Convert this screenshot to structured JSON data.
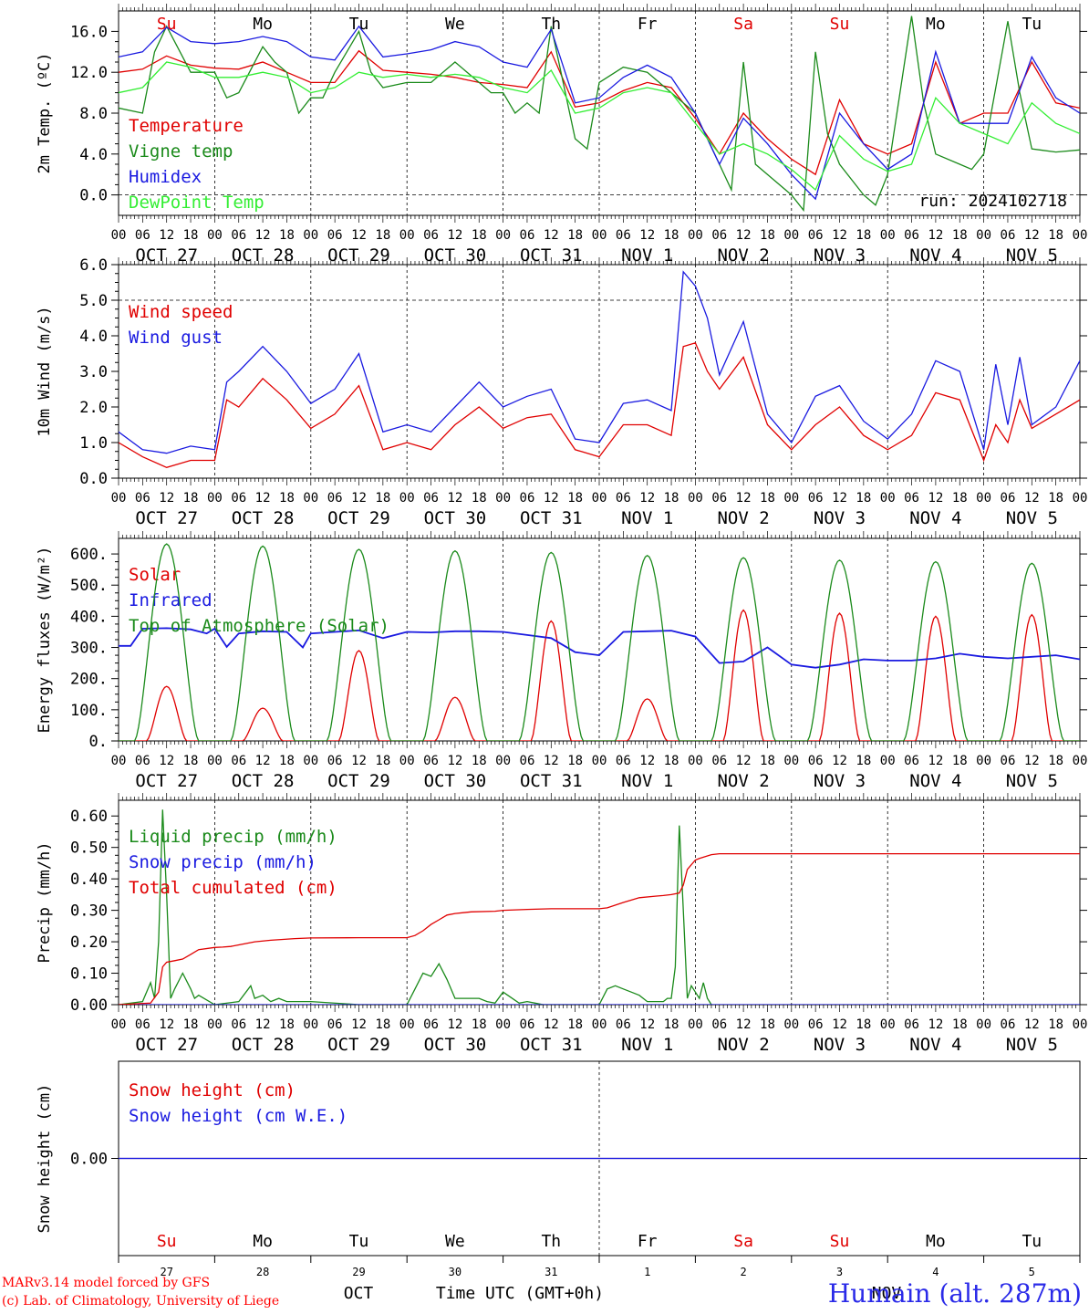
{
  "run_label": "run: 2024102718",
  "x_axis": {
    "day_labels": [
      "OCT 27",
      "OCT 28",
      "OCT 29",
      "OCT 30",
      "OCT 31",
      "NOV 1",
      "NOV 2",
      "NOV 3",
      "NOV 4",
      "NOV 5"
    ],
    "hour_labels": [
      "00",
      "06",
      "12",
      "18"
    ],
    "weekdays": [
      "Su",
      "Mo",
      "Tu",
      "We",
      "Th",
      "Fr",
      "Sa",
      "Su",
      "Mo",
      "Tu"
    ],
    "weekday_colors": [
      "#e00000",
      "#000000",
      "#000000",
      "#000000",
      "#000000",
      "#000000",
      "#e00000",
      "#e00000",
      "#000000",
      "#000000"
    ],
    "day_numbers": [
      "27",
      "28",
      "29",
      "30",
      "31",
      "1",
      "2",
      "3",
      "4",
      "5"
    ],
    "month_labels": [
      "OCT",
      "NOV"
    ],
    "time_label": "Time UTC (GMT+0h)"
  },
  "colors": {
    "red": "#e00000",
    "green": "#1a8a1a",
    "blue": "#1a1ae0",
    "lightgreen": "#33ee33",
    "purple": "#7a3a9a"
  },
  "footer": {
    "credit_line1": "MARv3.14 model forced by GFS",
    "credit_line2": "(c) Lab. of Climatology, University of Liege",
    "station": "Humain (alt. 287m)"
  },
  "chart_data": [
    {
      "id": "temp",
      "type": "line",
      "ylabel": "2m Temp. (ºC)",
      "ylim": [
        -2.0,
        18.0
      ],
      "yticks": [
        0.0,
        4.0,
        8.0,
        12.0,
        16.0
      ],
      "tick_decimals": 1,
      "dashed_lines": [
        0.0
      ],
      "x_unit": "hours since OCT 27 00 UTC",
      "series": [
        {
          "name": "Temperature",
          "color": "#e00000",
          "x": [
            0,
            6,
            12,
            18,
            24,
            30,
            36,
            42,
            48,
            54,
            60,
            66,
            72,
            78,
            84,
            90,
            96,
            102,
            108,
            114,
            120,
            126,
            132,
            138,
            144,
            150,
            156,
            162,
            168,
            174,
            180,
            186,
            192,
            198,
            204,
            210,
            216,
            222,
            228,
            234,
            240
          ],
          "values": [
            12,
            12.3,
            13.6,
            12.7,
            12.4,
            12.3,
            13,
            12,
            11,
            11,
            14.1,
            12.2,
            12,
            11.8,
            11.5,
            11,
            10.8,
            10.5,
            14,
            8.6,
            9,
            10.2,
            11,
            10.5,
            7.5,
            4,
            8,
            5.5,
            3.5,
            2,
            9.3,
            5,
            4,
            5,
            13,
            7,
            8,
            8,
            13,
            9,
            8.5
          ]
        },
        {
          "name": "Vigne temp",
          "color": "#1a8a1a",
          "x": [
            0,
            6,
            9,
            12,
            18,
            21,
            24,
            27,
            30,
            36,
            39,
            42,
            45,
            48,
            51,
            54,
            57,
            60,
            63,
            66,
            72,
            75,
            78,
            84,
            90,
            93,
            96,
            99,
            102,
            105,
            108,
            114,
            117,
            120,
            126,
            132,
            138,
            141,
            144,
            150,
            153,
            156,
            159,
            162,
            168,
            171,
            174,
            177,
            180,
            186,
            189,
            192,
            198,
            201,
            204,
            210,
            213,
            216,
            222,
            225,
            228,
            234,
            240
          ],
          "values": [
            8.5,
            8,
            14,
            16.5,
            12,
            12,
            12,
            9.5,
            10,
            14.5,
            13,
            12,
            8,
            9.5,
            9.5,
            12,
            14,
            16,
            12,
            10.5,
            11,
            11,
            11,
            13,
            11,
            10,
            10,
            8,
            9,
            8,
            16.5,
            5.5,
            4.5,
            11,
            12.5,
            12,
            10,
            9,
            8,
            3,
            0.5,
            13,
            3,
            2,
            0,
            -1.5,
            14,
            6,
            3,
            0,
            -1,
            2,
            17.5,
            9,
            4,
            3,
            2.5,
            4,
            17,
            10,
            4.5,
            4.2,
            4.4
          ]
        },
        {
          "name": "Humidex",
          "color": "#1a1ae0",
          "x": [
            0,
            6,
            12,
            18,
            24,
            30,
            36,
            42,
            48,
            54,
            60,
            66,
            72,
            78,
            84,
            90,
            96,
            102,
            108,
            114,
            120,
            126,
            132,
            138,
            144,
            150,
            156,
            162,
            168,
            174,
            180,
            186,
            192,
            198,
            204,
            210,
            216,
            222,
            228,
            234,
            240
          ],
          "values": [
            13.5,
            14,
            16.4,
            15,
            14.8,
            15,
            15.5,
            15,
            13.5,
            13.2,
            16.5,
            13.5,
            13.8,
            14.2,
            15,
            14.5,
            13,
            12.5,
            16.2,
            9,
            9.5,
            11.5,
            12.7,
            11.5,
            8,
            3,
            7.5,
            5,
            2,
            -0.4,
            8,
            5,
            2.5,
            4,
            14,
            7,
            7,
            7,
            13.5,
            9.5,
            8
          ]
        },
        {
          "name": "DewPoint Temp",
          "color": "#33ee33",
          "x": [
            0,
            6,
            12,
            18,
            24,
            30,
            36,
            42,
            48,
            54,
            60,
            66,
            72,
            78,
            84,
            90,
            96,
            102,
            108,
            114,
            120,
            126,
            132,
            138,
            144,
            150,
            156,
            162,
            168,
            174,
            180,
            186,
            192,
            198,
            204,
            210,
            216,
            222,
            228,
            234,
            240
          ],
          "values": [
            10,
            10.5,
            13,
            12.5,
            11.5,
            11.5,
            12,
            11.5,
            10,
            10.5,
            12,
            11.5,
            11.8,
            11.5,
            11.8,
            11.5,
            10.5,
            10,
            12.2,
            8,
            8.5,
            10,
            10.5,
            10,
            7,
            4,
            5,
            4,
            2.5,
            0.5,
            5.8,
            3.5,
            2.3,
            3,
            9.5,
            7,
            6,
            5,
            9,
            7,
            6
          ]
        }
      ]
    },
    {
      "id": "wind",
      "type": "line",
      "ylabel": "10m Wind (m/s)",
      "ylim": [
        0.0,
        6.0
      ],
      "yticks": [
        0.0,
        1.0,
        2.0,
        3.0,
        4.0,
        5.0,
        6.0
      ],
      "tick_decimals": 1,
      "dashed_lines": [
        5.0
      ],
      "x_unit": "hours since OCT 27 00 UTC",
      "series": [
        {
          "name": "Wind speed",
          "color": "#e00000",
          "x": [
            0,
            6,
            12,
            18,
            24,
            27,
            30,
            36,
            42,
            48,
            54,
            60,
            66,
            72,
            78,
            84,
            90,
            96,
            102,
            108,
            114,
            120,
            126,
            132,
            138,
            141,
            144,
            147,
            150,
            156,
            162,
            168,
            174,
            180,
            186,
            192,
            198,
            204,
            210,
            216,
            219,
            222,
            225,
            228,
            234,
            240
          ],
          "values": [
            1,
            0.6,
            0.3,
            0.5,
            0.5,
            2.2,
            2,
            2.8,
            2.2,
            1.4,
            1.8,
            2.6,
            0.8,
            1,
            0.8,
            1.5,
            2,
            1.4,
            1.7,
            1.8,
            0.8,
            0.6,
            1.5,
            1.5,
            1.2,
            3.7,
            3.8,
            3,
            2.5,
            3.4,
            1.5,
            0.8,
            1.5,
            2,
            1.2,
            0.8,
            1.2,
            2.4,
            2.2,
            0.5,
            1.5,
            1,
            2.2,
            1.4,
            1.8,
            2.2
          ]
        },
        {
          "name": "Wind gust",
          "color": "#1a1ae0",
          "x": [
            0,
            6,
            12,
            18,
            24,
            27,
            30,
            36,
            42,
            48,
            54,
            60,
            66,
            72,
            78,
            84,
            90,
            96,
            102,
            108,
            114,
            120,
            126,
            132,
            138,
            141,
            144,
            147,
            150,
            156,
            162,
            168,
            174,
            180,
            186,
            192,
            198,
            204,
            210,
            216,
            219,
            222,
            225,
            228,
            234,
            240
          ],
          "values": [
            1.3,
            0.8,
            0.7,
            0.9,
            0.8,
            2.7,
            3,
            3.7,
            3,
            2.1,
            2.5,
            3.5,
            1.3,
            1.5,
            1.3,
            2,
            2.7,
            2,
            2.3,
            2.5,
            1.1,
            1,
            2.1,
            2.2,
            1.9,
            5.8,
            5.4,
            4.5,
            2.9,
            4.4,
            1.8,
            1,
            2.3,
            2.6,
            1.6,
            1.1,
            1.8,
            3.3,
            3,
            0.8,
            3.2,
            1.5,
            3.4,
            1.5,
            2,
            3.3
          ]
        }
      ]
    },
    {
      "id": "flux",
      "type": "line",
      "ylabel": "Energy fluxes (W/m²)",
      "ylim": [
        0.0,
        650.0
      ],
      "yticks": [
        0,
        100,
        200,
        300,
        400,
        500,
        600
      ],
      "tick_decimals": 0,
      "tick_suffix": ".",
      "dashed_lines": [],
      "x_unit": "hours since OCT 27 00 UTC",
      "series": [
        {
          "name": "Solar",
          "color": "#e00000",
          "peaks": [
            175,
            105,
            290,
            140,
            385,
            135,
            420,
            410,
            400,
            405
          ]
        },
        {
          "name": "Infrared",
          "color": "#1a1ae0",
          "x": [
            0,
            3,
            6,
            12,
            18,
            22,
            24,
            27,
            30,
            36,
            42,
            46,
            48,
            54,
            60,
            66,
            72,
            78,
            84,
            90,
            96,
            102,
            108,
            114,
            120,
            126,
            132,
            138,
            144,
            150,
            156,
            162,
            168,
            174,
            180,
            186,
            192,
            198,
            204,
            210,
            216,
            222,
            228,
            234,
            240
          ],
          "values": [
            305,
            305,
            360,
            362,
            358,
            345,
            360,
            302,
            345,
            352,
            350,
            300,
            345,
            350,
            355,
            330,
            350,
            348,
            352,
            352,
            350,
            340,
            330,
            285,
            275,
            350,
            352,
            354,
            335,
            250,
            255,
            300,
            245,
            235,
            245,
            262,
            258,
            258,
            265,
            280,
            270,
            265,
            270,
            275,
            262
          ]
        },
        {
          "name": "Top of Atmosphere (Solar)",
          "color": "#1a8a1a",
          "peaks": [
            632,
            625,
            615,
            610,
            605,
            595,
            588,
            580,
            575,
            570
          ]
        }
      ]
    },
    {
      "id": "precip",
      "type": "line",
      "ylabel": "Precip (mm/h)",
      "ylim": [
        0.0,
        0.65
      ],
      "yticks": [
        0.0,
        0.1,
        0.2,
        0.3,
        0.4,
        0.5,
        0.6
      ],
      "tick_decimals": 2,
      "dashed_lines": [],
      "x_unit": "hours since OCT 27 00 UTC",
      "series": [
        {
          "name": "Liquid precip (mm/h)",
          "color": "#1a8a1a",
          "x": [
            0,
            6,
            8,
            9,
            10,
            11,
            12,
            13,
            14,
            16,
            18,
            19,
            20,
            24,
            30,
            33,
            34,
            36,
            38,
            40,
            42,
            48,
            60,
            72,
            74,
            76,
            78,
            80,
            82,
            84,
            88,
            90,
            92,
            94,
            96,
            100,
            102,
            104,
            106,
            120,
            122,
            124,
            126,
            128,
            130,
            132,
            136,
            137,
            138,
            139,
            140,
            141,
            142,
            143,
            144,
            145,
            146,
            147,
            148
          ],
          "values": [
            0,
            0.01,
            0.07,
            0.02,
            0.2,
            0.62,
            0.35,
            0.02,
            0.05,
            0.1,
            0.05,
            0.02,
            0.03,
            0,
            0.01,
            0.06,
            0.02,
            0.03,
            0.01,
            0.02,
            0.01,
            0.01,
            0,
            0,
            0.05,
            0.1,
            0.09,
            0.13,
            0.08,
            0.02,
            0.02,
            0.02,
            0.01,
            0.005,
            0.04,
            0.005,
            0.01,
            0.005,
            0,
            0,
            0.05,
            0.06,
            0.05,
            0.04,
            0.03,
            0.01,
            0.01,
            0.02,
            0.02,
            0.12,
            0.57,
            0.3,
            0.02,
            0.06,
            0.04,
            0.02,
            0.07,
            0.02,
            0
          ]
        },
        {
          "name": "Snow precip (mm/h)",
          "color": "#1a1ae0",
          "x": [
            0,
            240
          ],
          "values": [
            0,
            0
          ]
        },
        {
          "name": "Total cumulated (cm)",
          "color": "#e00000",
          "x": [
            0,
            8,
            10,
            11,
            12,
            14,
            16,
            18,
            20,
            24,
            26,
            28,
            30,
            34,
            38,
            44,
            48,
            60,
            66,
            72,
            74,
            76,
            78,
            80,
            82,
            84,
            88,
            94,
            96,
            102,
            108,
            114,
            120,
            122,
            126,
            130,
            134,
            136,
            138,
            140,
            141,
            142,
            144,
            145,
            148,
            150,
            240
          ],
          "values": [
            0,
            0.005,
            0.04,
            0.12,
            0.135,
            0.14,
            0.145,
            0.16,
            0.175,
            0.182,
            0.183,
            0.185,
            0.19,
            0.2,
            0.205,
            0.21,
            0.212,
            0.213,
            0.213,
            0.213,
            0.22,
            0.235,
            0.255,
            0.27,
            0.285,
            0.29,
            0.295,
            0.297,
            0.3,
            0.303,
            0.305,
            0.305,
            0.305,
            0.308,
            0.325,
            0.34,
            0.345,
            0.347,
            0.35,
            0.355,
            0.38,
            0.43,
            0.46,
            0.465,
            0.477,
            0.48,
            0.48
          ]
        }
      ]
    },
    {
      "id": "snow",
      "type": "line",
      "ylabel": "Snow height (cm)",
      "ylim": [
        -1.0,
        1.0
      ],
      "yticks": [
        0.0
      ],
      "tick_decimals": 2,
      "dashed_lines": [],
      "x_unit": "hours since OCT 27 00 UTC",
      "series": [
        {
          "name": "Snow height (cm)",
          "color": "#e00000",
          "x": [
            0,
            240
          ],
          "values": [
            0,
            0
          ]
        },
        {
          "name": "Snow height (cm W.E.)",
          "color": "#1a1ae0",
          "x": [
            0,
            240
          ],
          "values": [
            0,
            0
          ]
        }
      ]
    }
  ]
}
